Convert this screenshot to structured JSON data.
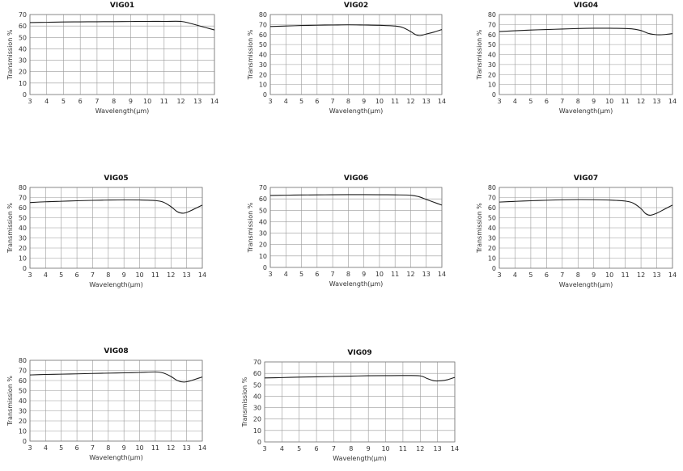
{
  "chart_data": [
    {
      "type": "line",
      "title": "VIG01",
      "xlabel": "Wavelength(μm)",
      "ylabel": "Transmission %",
      "xlim": [
        3,
        14
      ],
      "ylim": [
        0,
        70
      ],
      "xticks": [
        3,
        4,
        5,
        6,
        7,
        8,
        9,
        10,
        11,
        12,
        13,
        14
      ],
      "yticks": [
        0,
        10,
        20,
        30,
        40,
        50,
        60,
        70
      ],
      "grid": true,
      "series": [
        {
          "x": [
            3,
            4,
            5,
            6,
            7,
            8,
            9,
            10,
            11,
            12,
            12.5,
            13,
            13.5,
            14
          ],
          "y": [
            63,
            63.2,
            63.5,
            63.6,
            63.7,
            63.8,
            63.9,
            64,
            64,
            64,
            62.5,
            60.5,
            58.5,
            56.5
          ]
        }
      ]
    },
    {
      "type": "line",
      "title": "VIG02",
      "xlabel": "Wavelength(μm)",
      "ylabel": "Transmission %",
      "xlim": [
        3,
        14
      ],
      "ylim": [
        0,
        80
      ],
      "xticks": [
        3,
        4,
        5,
        6,
        7,
        8,
        9,
        10,
        11,
        12,
        13,
        14
      ],
      "yticks": [
        0,
        10,
        20,
        30,
        40,
        50,
        60,
        70,
        80
      ],
      "grid": true,
      "series": [
        {
          "x": [
            3,
            4,
            5,
            6,
            7,
            8,
            9,
            10,
            11,
            11.5,
            12,
            12.3,
            12.6,
            13,
            13.5,
            14
          ],
          "y": [
            68,
            68.5,
            69,
            69.3,
            69.5,
            69.7,
            69.5,
            69.2,
            68.5,
            67,
            63,
            60,
            59,
            60.5,
            62.5,
            65
          ]
        }
      ]
    },
    {
      "type": "line",
      "title": "VIG04",
      "xlabel": "Wavelength(μm)",
      "ylabel": "Transmission %",
      "xlim": [
        3,
        14
      ],
      "ylim": [
        0,
        80
      ],
      "xticks": [
        3,
        4,
        5,
        6,
        7,
        8,
        9,
        10,
        11,
        12,
        13,
        14
      ],
      "yticks": [
        0,
        10,
        20,
        30,
        40,
        50,
        60,
        70,
        80
      ],
      "grid": true,
      "series": [
        {
          "x": [
            3,
            4,
            5,
            6,
            7,
            8,
            9,
            10,
            11,
            11.5,
            12,
            12.5,
            13,
            13.5,
            14
          ],
          "y": [
            63,
            63.8,
            64.5,
            65,
            65.5,
            66,
            66.3,
            66.3,
            66,
            65.5,
            64,
            61,
            59.8,
            60,
            61
          ]
        }
      ]
    },
    {
      "type": "line",
      "title": "VIG05",
      "xlabel": "Wavelength(μm)",
      "ylabel": "Transmission %",
      "xlim": [
        3,
        14
      ],
      "ylim": [
        0,
        80
      ],
      "xticks": [
        3,
        4,
        5,
        6,
        7,
        8,
        9,
        10,
        11,
        12,
        13,
        14
      ],
      "yticks": [
        0,
        10,
        20,
        30,
        40,
        50,
        60,
        70,
        80
      ],
      "grid": true,
      "series": [
        {
          "x": [
            3,
            4,
            5,
            6,
            7,
            8,
            9,
            10,
            11,
            11.5,
            12,
            12.4,
            12.8,
            13.2,
            13.6,
            14
          ],
          "y": [
            65,
            65.8,
            66.3,
            66.8,
            67.2,
            67.5,
            67.7,
            67.6,
            67,
            65.5,
            61,
            56,
            54.5,
            56.5,
            59.5,
            62.5
          ]
        }
      ]
    },
    {
      "type": "line",
      "title": "VIG06",
      "xlabel": "Wavelength(μm)",
      "ylabel": "Transmission %",
      "xlim": [
        3,
        14
      ],
      "ylim": [
        0,
        70
      ],
      "xticks": [
        3,
        4,
        5,
        6,
        7,
        8,
        9,
        10,
        11,
        12,
        13,
        14
      ],
      "yticks": [
        0,
        10,
        20,
        30,
        40,
        50,
        60,
        70
      ],
      "grid": true,
      "series": [
        {
          "x": [
            3,
            4,
            5,
            6,
            7,
            8,
            9,
            10,
            11,
            12,
            12.5,
            13,
            13.5,
            14
          ],
          "y": [
            63,
            63.2,
            63.4,
            63.5,
            63.6,
            63.7,
            63.7,
            63.6,
            63.5,
            63.2,
            62,
            59.5,
            57,
            54.5
          ]
        }
      ]
    },
    {
      "type": "line",
      "title": "VIG07",
      "xlabel": "Wavelength(μm)",
      "ylabel": "Transmission %",
      "xlim": [
        3,
        14
      ],
      "ylim": [
        0,
        80
      ],
      "xticks": [
        3,
        4,
        5,
        6,
        7,
        8,
        9,
        10,
        11,
        12,
        13,
        14
      ],
      "yticks": [
        0,
        10,
        20,
        30,
        40,
        50,
        60,
        70,
        80
      ],
      "grid": true,
      "series": [
        {
          "x": [
            3,
            4,
            5,
            6,
            7,
            8,
            9,
            10,
            11,
            11.5,
            12,
            12.3,
            12.6,
            13,
            13.5,
            14
          ],
          "y": [
            65.5,
            66.2,
            66.8,
            67.3,
            67.8,
            68,
            67.9,
            67.5,
            66.5,
            64.5,
            59,
            54,
            52.5,
            54.5,
            58.5,
            62.5
          ]
        }
      ]
    },
    {
      "type": "line",
      "title": "VIG08",
      "xlabel": "Wavelength(μm)",
      "ylabel": "Transmission %",
      "xlim": [
        3,
        14
      ],
      "ylim": [
        0,
        80
      ],
      "xticks": [
        3,
        4,
        5,
        6,
        7,
        8,
        9,
        10,
        11,
        12,
        13,
        14
      ],
      "yticks": [
        0,
        10,
        20,
        30,
        40,
        50,
        60,
        70,
        80
      ],
      "grid": true,
      "series": [
        {
          "x": [
            3,
            4,
            5,
            6,
            7,
            8,
            9,
            10,
            11,
            11.5,
            12,
            12.4,
            12.8,
            13.2,
            13.6,
            14
          ],
          "y": [
            65.5,
            66,
            66.3,
            66.6,
            67,
            67.3,
            67.6,
            68,
            68.5,
            67.5,
            64,
            60,
            58.5,
            59.5,
            61.5,
            63.5
          ]
        }
      ]
    },
    {
      "type": "line",
      "title": "VIG09",
      "xlabel": "Wavelength(μm)",
      "ylabel": "Transmission %",
      "xlim": [
        3,
        14
      ],
      "ylim": [
        0,
        70
      ],
      "xticks": [
        3,
        4,
        5,
        6,
        7,
        8,
        9,
        10,
        11,
        12,
        13,
        14
      ],
      "yticks": [
        0,
        10,
        20,
        30,
        40,
        50,
        60,
        70
      ],
      "grid": true,
      "series": [
        {
          "x": [
            3,
            4,
            5,
            6,
            7,
            8,
            9,
            10,
            11,
            12,
            12.4,
            12.8,
            13.2,
            13.6,
            14
          ],
          "y": [
            56,
            56.3,
            56.7,
            57,
            57.3,
            57.6,
            57.9,
            58,
            58.1,
            57.8,
            55.5,
            53.5,
            53.5,
            54.5,
            56.5
          ]
        }
      ]
    }
  ]
}
